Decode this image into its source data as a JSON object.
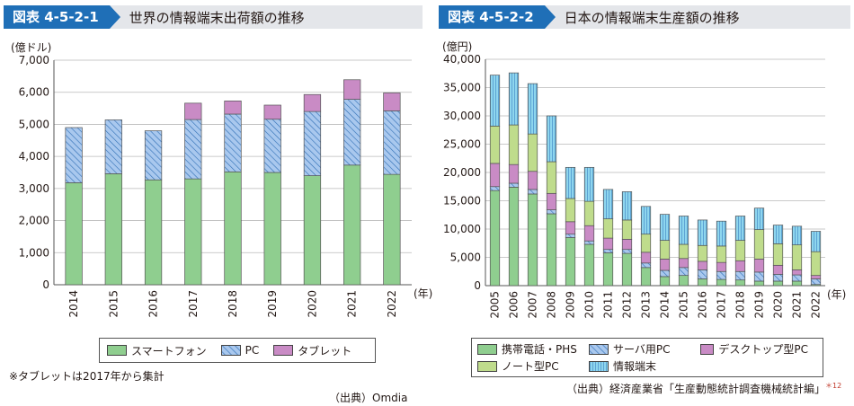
{
  "colors": {
    "green": "#8fce8f",
    "blue": "#a9c8ee",
    "blue_line": "#2e6db4",
    "pink": "#c98bc5",
    "light_green": "#bfdc8c",
    "cyan": "#8ed6ee",
    "cyan_line": "#3a7fc1",
    "header_bg": "#e4e6ea",
    "badge": "#1f6fb7"
  },
  "left": {
    "badge": "図表 4-5-2-1",
    "title": "世界の情報端末出荷額の推移",
    "footnote": "※タブレットは2017年から集計",
    "source": "（出典）Omdia"
  },
  "right": {
    "badge": "図表 4-5-2-2",
    "title": "日本の情報端末生産額の推移",
    "source": "（出典）経済産業省「生産動態統計調査機械統計編」",
    "source_sup": "＊12"
  },
  "chart_data": [
    {
      "type": "bar",
      "stacked": true,
      "ylabel": "(億ドル)",
      "xlabel": "(年)",
      "ylim": [
        0,
        7000
      ],
      "ytick_step": 1000,
      "categories": [
        "2014",
        "2015",
        "2016",
        "2017",
        "2018",
        "2019",
        "2020",
        "2021",
        "2022"
      ],
      "series": [
        {
          "name": "スマートフォン",
          "fill": "green",
          "values": [
            3180,
            3460,
            3270,
            3300,
            3520,
            3500,
            3400,
            3730,
            3440
          ]
        },
        {
          "name": "PC",
          "fill": "hatch",
          "values": [
            1720,
            1680,
            1530,
            1850,
            1800,
            1660,
            2000,
            2050,
            1980
          ]
        },
        {
          "name": "タブレット",
          "fill": "pink",
          "values": [
            0,
            0,
            0,
            510,
            410,
            440,
            530,
            610,
            560
          ]
        }
      ],
      "legend": [
        "スマートフォン",
        "PC",
        "タブレット"
      ]
    },
    {
      "type": "bar",
      "stacked": true,
      "ylabel": "(億円)",
      "xlabel": "(年)",
      "ylim": [
        0,
        40000
      ],
      "ytick_step": 5000,
      "categories": [
        "2005",
        "2006",
        "2007",
        "2008",
        "2009",
        "2010",
        "2011",
        "2012",
        "2013",
        "2014",
        "2015",
        "2016",
        "2017",
        "2018",
        "2019",
        "2020",
        "2021",
        "2022"
      ],
      "series": [
        {
          "name": "携帯電話・PHS",
          "fill": "green",
          "values": [
            16800,
            17400,
            16200,
            12700,
            8500,
            7300,
            5800,
            5700,
            3200,
            1600,
            1800,
            1200,
            1100,
            1000,
            800,
            800,
            800,
            200
          ]
        },
        {
          "name": "サーバ用PC",
          "fill": "hatch",
          "values": [
            700,
            700,
            800,
            700,
            600,
            600,
            600,
            700,
            800,
            1100,
            1400,
            1600,
            1400,
            1500,
            1600,
            1200,
            1100,
            1000
          ]
        },
        {
          "name": "デスクトップ型PC",
          "fill": "pink",
          "values": [
            4100,
            3300,
            3200,
            2900,
            2200,
            2700,
            2000,
            1800,
            1900,
            2000,
            1600,
            1500,
            1600,
            1900,
            2300,
            1600,
            900,
            600
          ]
        },
        {
          "name": "ノート型PC",
          "fill": "light_green",
          "values": [
            6600,
            7000,
            6600,
            5600,
            4100,
            4300,
            3400,
            3400,
            3200,
            3300,
            2500,
            2800,
            2900,
            3600,
            5200,
            3800,
            4400,
            4200
          ]
        },
        {
          "name": "情報端末",
          "fill": "dots",
          "values": [
            9000,
            9200,
            8900,
            8100,
            5500,
            6000,
            5200,
            5000,
            4900,
            4600,
            5000,
            4500,
            4400,
            4300,
            3800,
            3300,
            3300,
            3600
          ]
        }
      ],
      "legend": [
        "携帯電話・PHS",
        "サーバ用PC",
        "デスクトップ型PC",
        "ノート型PC",
        "情報端末"
      ]
    }
  ]
}
